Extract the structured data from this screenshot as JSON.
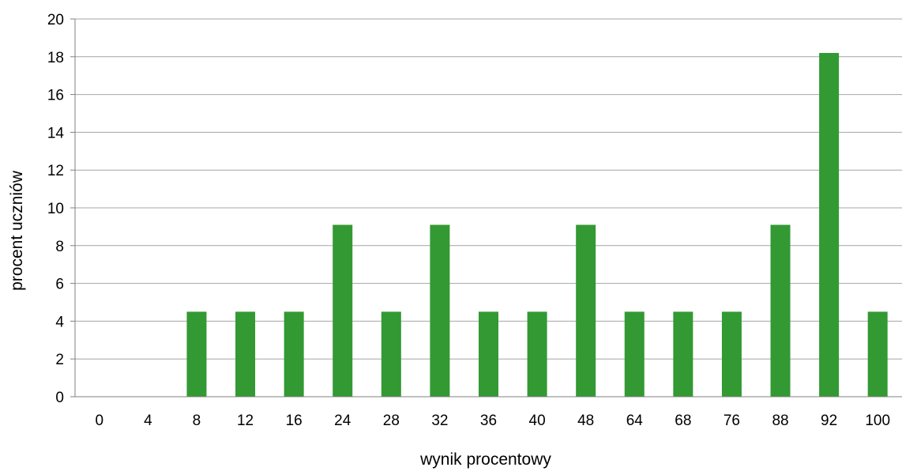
{
  "chart_data": {
    "type": "bar",
    "xlabel": "wynik procentowy",
    "ylabel": "procent uczniów",
    "categories": [
      "0",
      "4",
      "8",
      "12",
      "16",
      "24",
      "28",
      "32",
      "36",
      "40",
      "48",
      "64",
      "68",
      "76",
      "88",
      "92",
      "100"
    ],
    "values": [
      0,
      0,
      4.5,
      4.5,
      4.5,
      9.1,
      4.5,
      9.1,
      4.5,
      4.5,
      9.1,
      4.5,
      4.5,
      4.5,
      9.1,
      18.2,
      4.5
    ],
    "ylim": [
      0,
      20
    ],
    "yticks": [
      "0",
      "2",
      "4",
      "6",
      "8",
      "10",
      "12",
      "14",
      "16",
      "18",
      "20"
    ],
    "grid": "horizontal",
    "bar_color": "#339933",
    "grid_color": "#a6a6a6",
    "axis_color": "#808080"
  }
}
